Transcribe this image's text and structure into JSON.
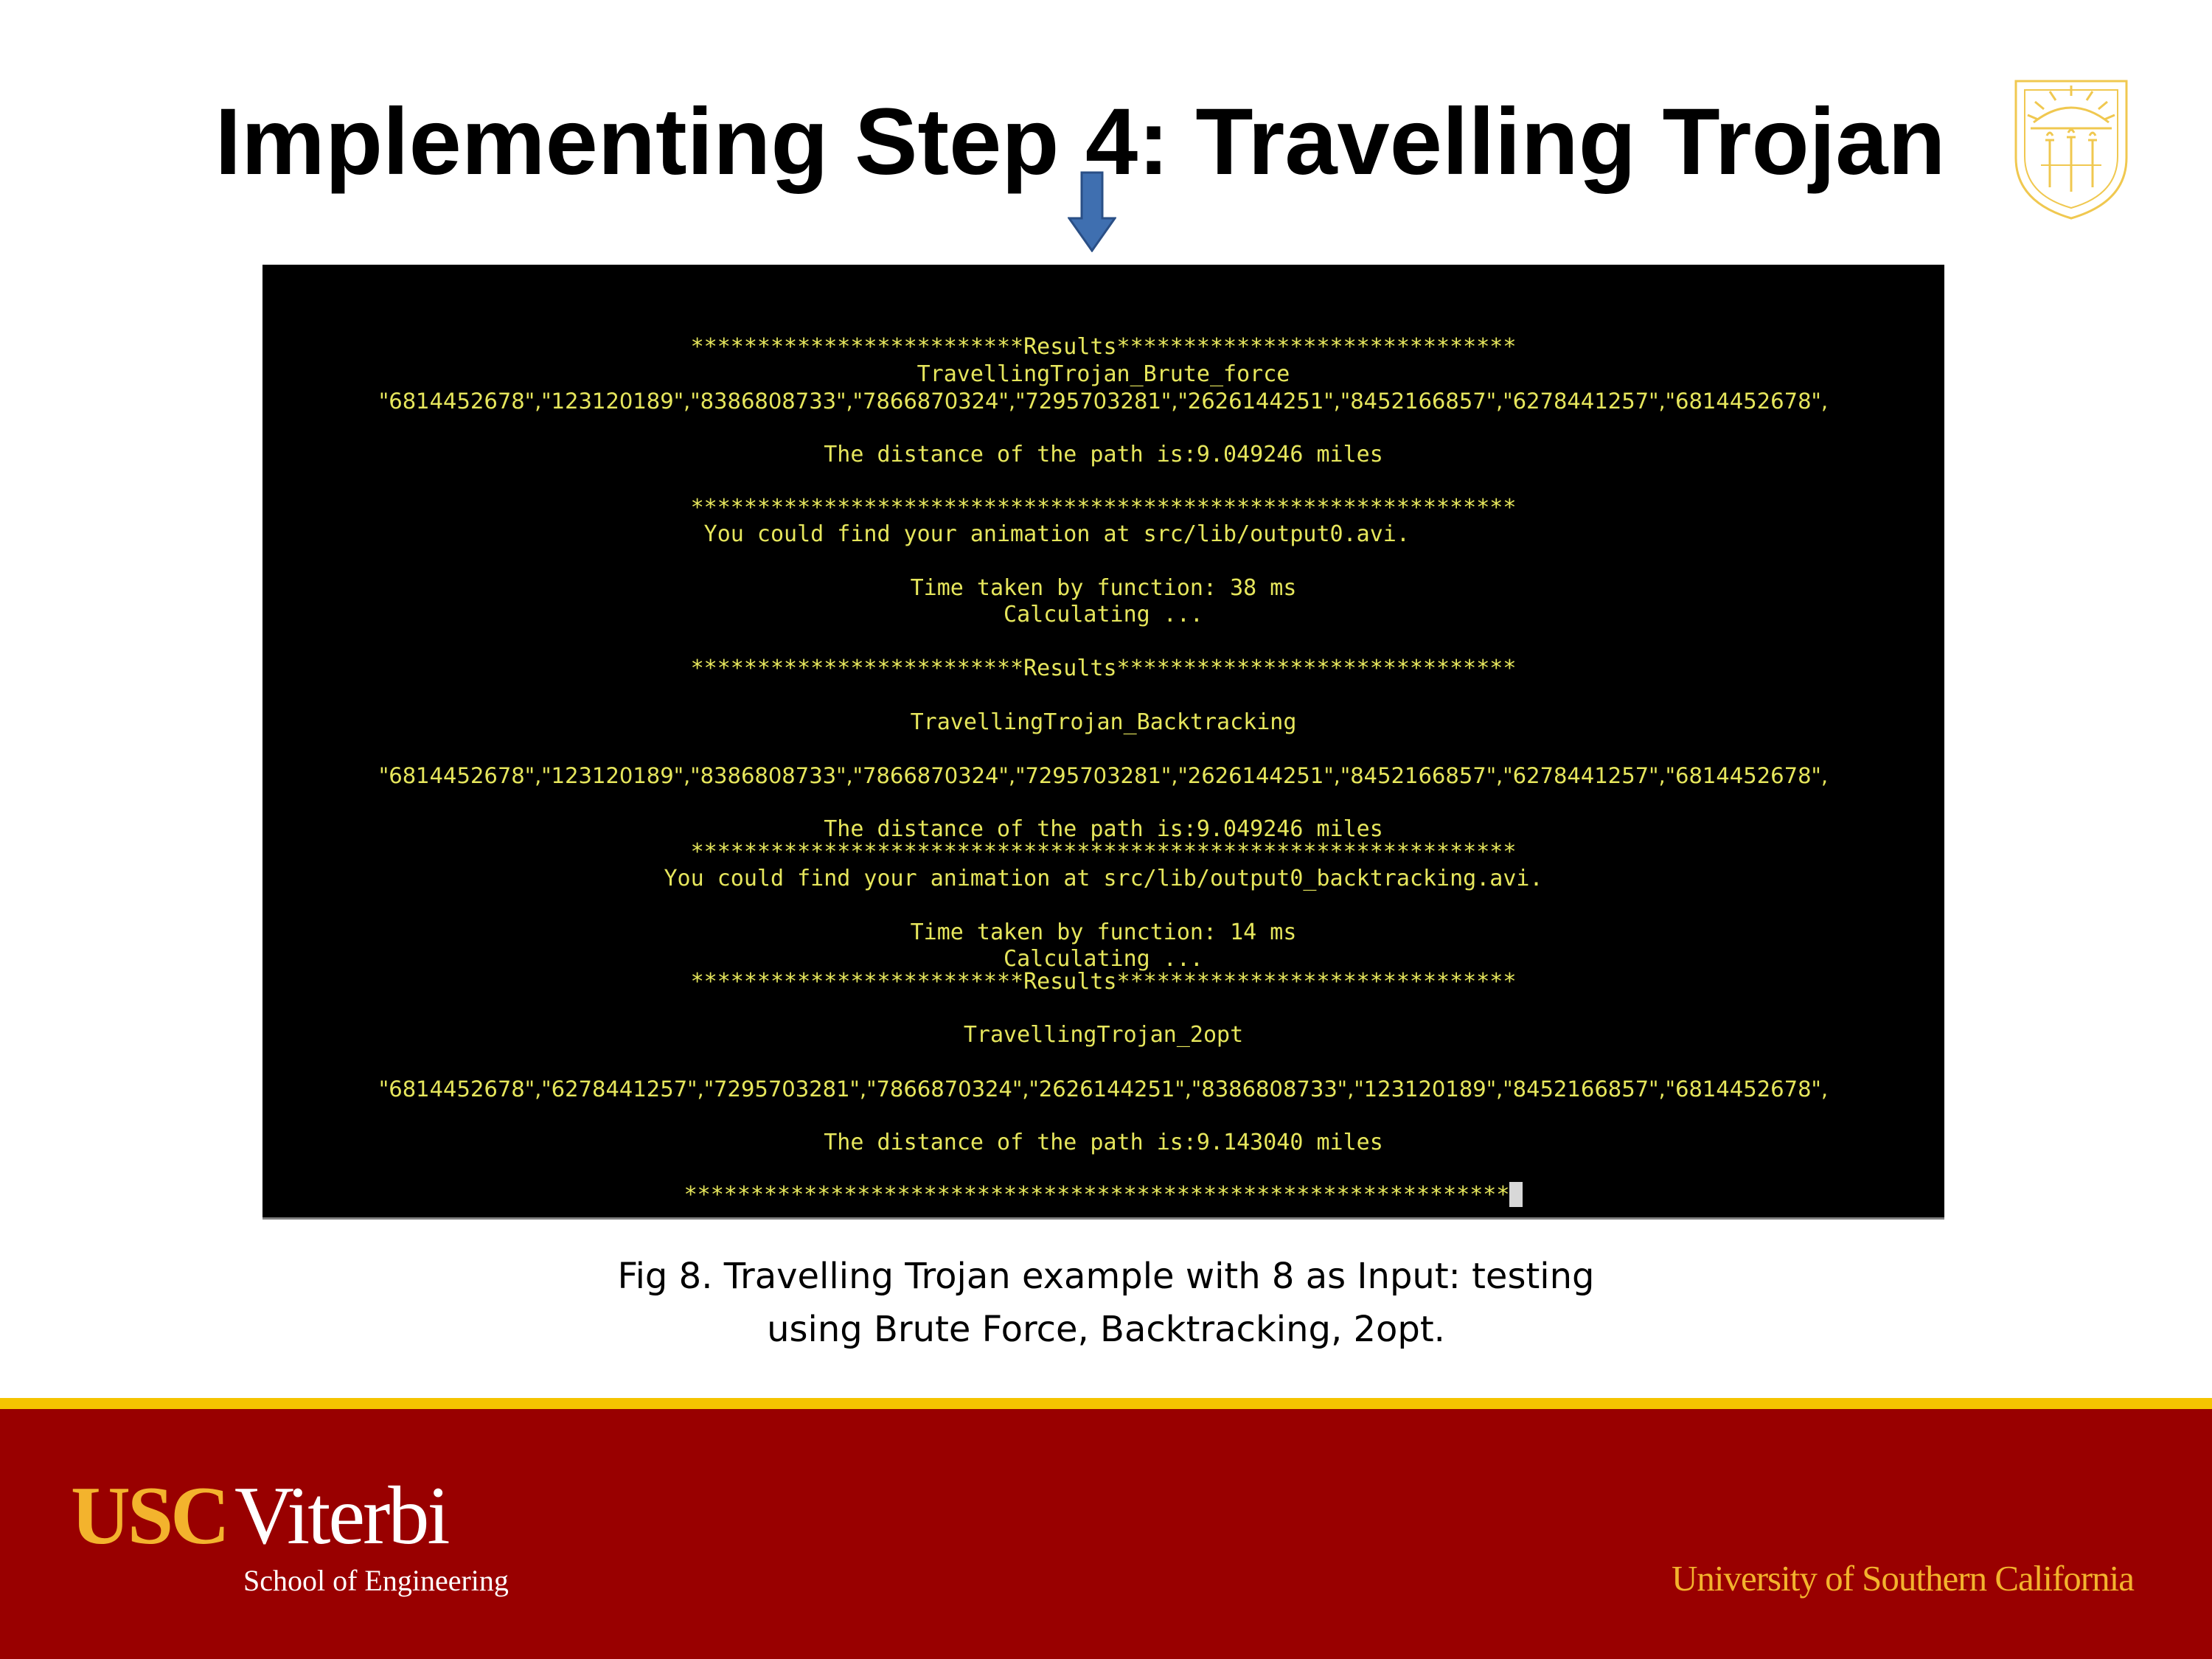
{
  "slide": {
    "title": "Implementing Step 4: Travelling Trojan"
  },
  "terminal": {
    "lines": [
      "*************************Results******************************",
      "TravellingTrojan_Brute_force",
      "\"6814452678\",\"123120189\",\"8386808733\",\"7866870324\",\"7295703281\",\"2626144251\",\"8452166857\",\"6278441257\",\"6814452678\",",
      "The distance of the path is:9.049246 miles",
      "**************************************************************",
      "You could find your animation at src/lib/output0.avi.       ",
      "Time taken by function: 38 ms",
      "Calculating ...",
      "*************************Results******************************",
      "TravellingTrojan_Backtracking",
      "\"6814452678\",\"123120189\",\"8386808733\",\"7866870324\",\"7295703281\",\"2626144251\",\"8452166857\",\"6278441257\",\"6814452678\",",
      "The distance of the path is:9.049246 miles",
      "**************************************************************",
      "You could find your animation at src/lib/output0_backtracking.avi.",
      "Time taken by function: 14 ms",
      "Calculating ...",
      "*************************Results******************************",
      "TravellingTrojan_2opt",
      "\"6814452678\",\"6278441257\",\"7295703281\",\"7866870324\",\"2626144251\",\"8386808733\",\"123120189\",\"8452166857\",\"6814452678\",",
      "The distance of the path is:9.143040 miles",
      "**************************************************************"
    ]
  },
  "caption": {
    "line1": "Fig 8. Travelling Trojan example with 8 as Input: testing",
    "line2": "using Brute Force, Backtracking, 2opt."
  },
  "footer": {
    "logo_usc": "USC",
    "logo_viterbi": "Viterbi",
    "logo_school": "School of Engineering",
    "university": "University of Southern California"
  },
  "colors": {
    "terminal_text": "#e6e65c",
    "footer_red": "#990000",
    "gold": "#f5c400",
    "seal_gold": "#f0c850",
    "arrow_blue": "#3f6fb0"
  }
}
